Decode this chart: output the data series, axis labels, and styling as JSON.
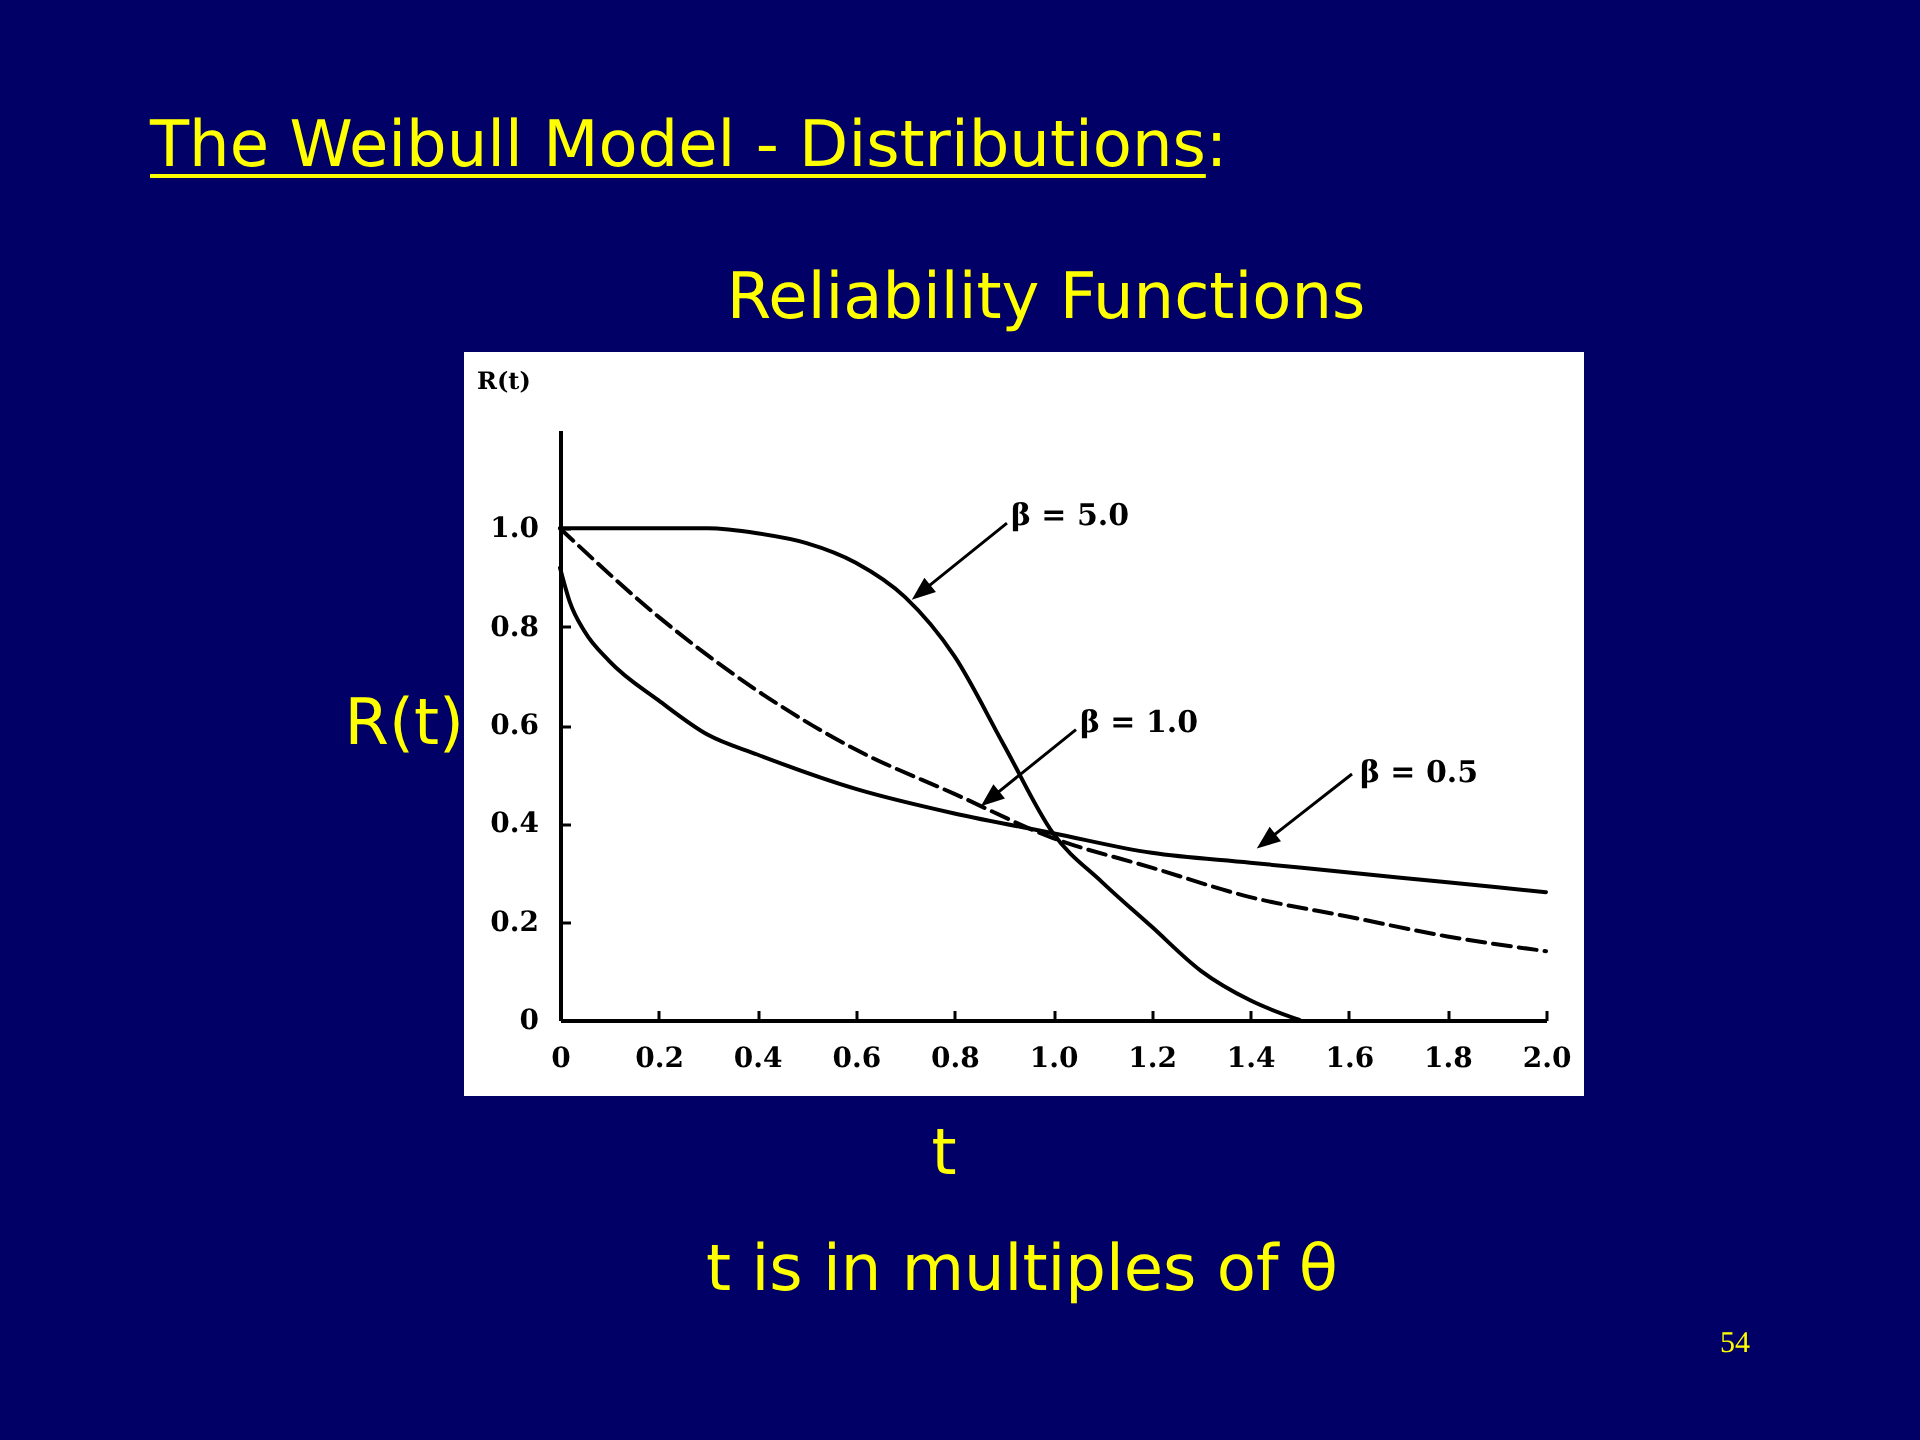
{
  "chart_data": {
    "type": "line",
    "title": "The Weibull Model - Distributions:",
    "subtitle": "Reliability Functions",
    "xlabel": "t",
    "ylabel": "R(t)",
    "xlim": [
      0,
      2
    ],
    "ylim": [
      0,
      1.2
    ],
    "xticks": [
      0,
      0.2,
      0.4,
      0.6,
      0.8,
      {
        "value": 1,
        "label": "1.0"
      },
      1.2,
      1.4,
      1.6,
      1.8,
      {
        "value": 2,
        "label": "2.0"
      }
    ],
    "yticks": [
      0,
      0.2,
      0.4,
      0.6,
      0.8,
      {
        "value": 1,
        "label": "1.0"
      }
    ],
    "line_style": "solid",
    "series": [
      {
        "color": "#000000",
        "x": [
          0,
          0.1,
          0.2,
          0.3,
          0.4,
          0.5,
          0.6,
          0.7,
          0.8,
          0.9,
          1.0,
          1.1,
          1.2,
          1.3,
          1.4,
          1.5
        ],
        "values": [
          1.0,
          1.0,
          1.0,
          1.0,
          0.99,
          0.97,
          0.93,
          0.86,
          0.74,
          0.56,
          0.38,
          0.28,
          0.19,
          0.1,
          0.04,
          0
        ]
      },
      {
        "color": "#000000",
        "line_style": "dashed",
        "x": [
          0,
          0.2,
          0.4,
          0.6,
          0.8,
          1.0,
          1.2,
          1.4,
          1.6,
          1.8,
          2.0
        ],
        "values": [
          1.0,
          0.82,
          0.67,
          0.55,
          0.46,
          0.37,
          0.31,
          0.25,
          0.21,
          0.17,
          0.14
        ]
      },
      {
        "color": "#000000",
        "x": [
          0,
          0.02,
          0.05,
          0.1,
          0.2,
          0.3,
          0.4,
          0.6,
          0.8,
          1.0,
          1.2,
          1.4,
          1.6,
          1.8,
          2.0
        ],
        "values": [
          0.92,
          0.85,
          0.79,
          0.73,
          0.65,
          0.58,
          0.54,
          0.47,
          0.42,
          0.38,
          0.34,
          0.32,
          0.3,
          0.28,
          0.26
        ]
      }
    ],
    "annotations": [
      {
        "text": "β = 5.0",
        "x": 0.72,
        "y": 0.86
      },
      {
        "text": "β = 1.0",
        "x": 0.86,
        "y": 0.44
      },
      "β = 0.5",
      "t is in multiples of θ",
      "54"
    ]
  }
}
